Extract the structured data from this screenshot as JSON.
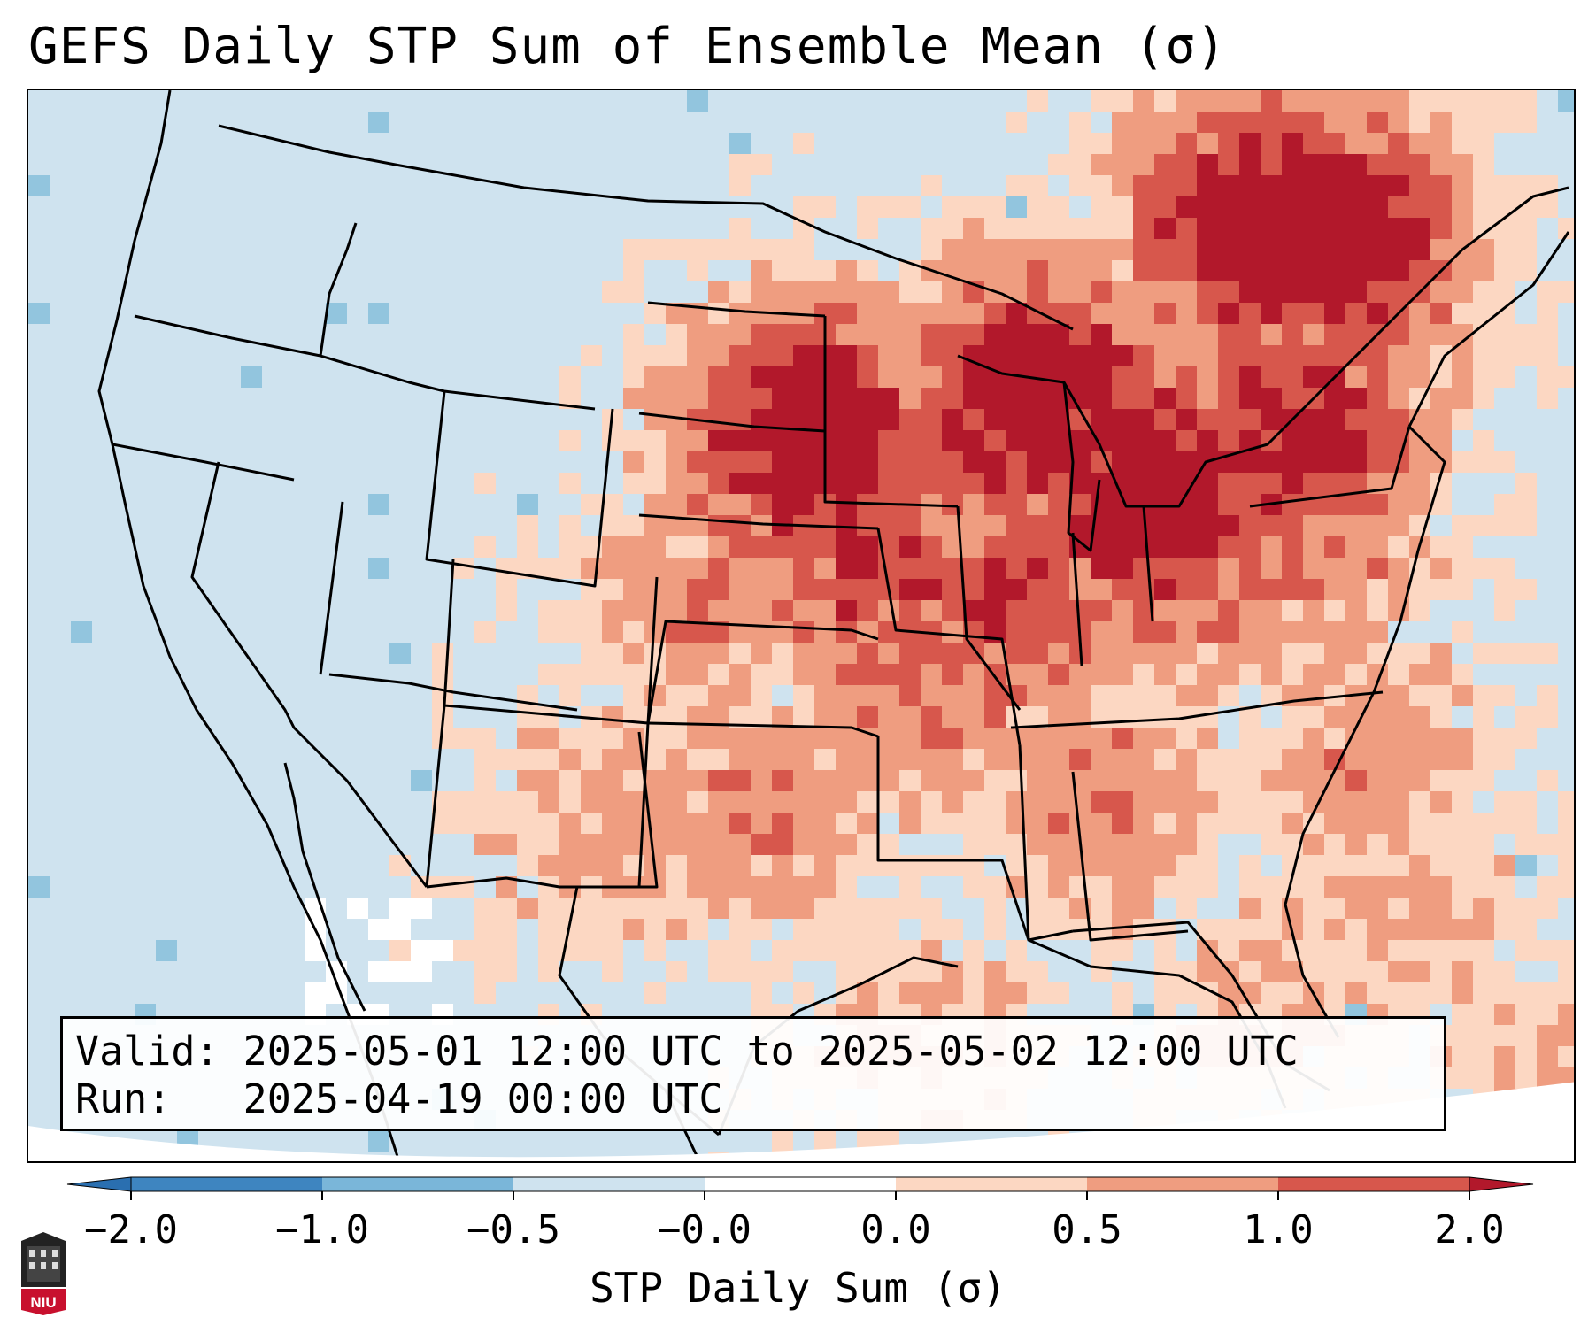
{
  "title": "GEFS Daily STP Sum of Ensemble Mean (σ)",
  "info": {
    "valid_line": "Valid: 2025-05-01 12:00 UTC to 2025-05-02 12:00 UTC",
    "run_line": "Run:   2025-04-19 00:00 UTC"
  },
  "colorbar": {
    "label": "STP Daily Sum (σ)",
    "ticks": [
      "−2.0",
      "−1.0",
      "−0.5",
      "−0.0",
      "0.0",
      "0.5",
      "1.0",
      "2.0"
    ],
    "colors": [
      "#3e85c0",
      "#7ab6d9",
      "#cfe3ef",
      "#ffffff",
      "#fcd7c2",
      "#ef9d80",
      "#d7574c"
    ],
    "extend_low_color": "#2a6fb0",
    "extend_high_color": "#b2182b"
  },
  "map": {
    "background_color": "#cfe3ef",
    "cell_colors": {
      "1": "#fcd7c2",
      "2": "#ef9d80",
      "3": "#d7574c",
      "4": "#b2182b",
      "-1": "#92c5de",
      "0": "#ffffff"
    }
  },
  "logo": {
    "text": "NIU",
    "name": "niu-logo"
  }
}
